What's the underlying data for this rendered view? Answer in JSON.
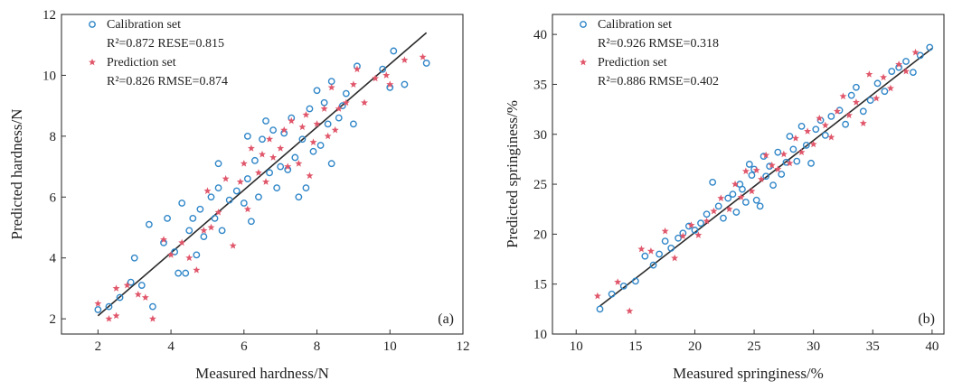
{
  "chart_data": [
    {
      "type": "scatter",
      "xlabel": "Measured hardness/N",
      "ylabel": "Predicted hardness/N",
      "xlim": [
        1,
        12
      ],
      "ylim": [
        1.5,
        12
      ],
      "xticks": [
        2,
        4,
        6,
        8,
        10,
        12
      ],
      "yticks": [
        2,
        4,
        6,
        8,
        10,
        12
      ],
      "panel_label": "(a)",
      "legend_position": "top-left",
      "fit_line": [
        [
          2.0,
          2.1
        ],
        [
          11.0,
          11.4
        ]
      ],
      "series": [
        {
          "name": "Calibration set",
          "stat": "R²=0.872 RESE=0.815",
          "marker": "circle",
          "color": "#2f86c8",
          "points": [
            [
              2.0,
              2.3
            ],
            [
              2.3,
              2.4
            ],
            [
              2.6,
              2.7
            ],
            [
              2.9,
              3.2
            ],
            [
              3.0,
              4.0
            ],
            [
              3.2,
              3.1
            ],
            [
              3.4,
              5.1
            ],
            [
              3.5,
              2.4
            ],
            [
              3.8,
              4.5
            ],
            [
              3.9,
              5.3
            ],
            [
              4.1,
              4.2
            ],
            [
              4.2,
              3.5
            ],
            [
              4.3,
              5.8
            ],
            [
              4.4,
              3.5
            ],
            [
              4.5,
              4.9
            ],
            [
              4.6,
              5.3
            ],
            [
              4.7,
              4.1
            ],
            [
              4.8,
              5.6
            ],
            [
              4.9,
              4.7
            ],
            [
              5.1,
              6.0
            ],
            [
              5.2,
              5.3
            ],
            [
              5.3,
              6.3
            ],
            [
              5.3,
              7.1
            ],
            [
              5.4,
              4.9
            ],
            [
              5.6,
              5.9
            ],
            [
              5.8,
              6.2
            ],
            [
              6.0,
              5.8
            ],
            [
              6.1,
              6.6
            ],
            [
              6.1,
              8.0
            ],
            [
              6.2,
              5.2
            ],
            [
              6.3,
              7.2
            ],
            [
              6.4,
              6.0
            ],
            [
              6.5,
              7.9
            ],
            [
              6.6,
              8.5
            ],
            [
              6.7,
              6.8
            ],
            [
              6.8,
              8.2
            ],
            [
              6.9,
              6.3
            ],
            [
              7.0,
              7.0
            ],
            [
              7.1,
              8.1
            ],
            [
              7.2,
              6.9
            ],
            [
              7.3,
              8.6
            ],
            [
              7.4,
              7.3
            ],
            [
              7.5,
              6.0
            ],
            [
              7.6,
              7.9
            ],
            [
              7.7,
              6.3
            ],
            [
              7.8,
              8.9
            ],
            [
              7.9,
              7.5
            ],
            [
              8.0,
              9.5
            ],
            [
              8.1,
              7.7
            ],
            [
              8.2,
              9.1
            ],
            [
              8.3,
              8.4
            ],
            [
              8.4,
              9.8
            ],
            [
              8.4,
              7.1
            ],
            [
              8.6,
              8.6
            ],
            [
              8.7,
              9.0
            ],
            [
              8.8,
              9.4
            ],
            [
              9.0,
              8.4
            ],
            [
              9.1,
              10.3
            ],
            [
              9.8,
              10.2
            ],
            [
              10.0,
              9.6
            ],
            [
              10.1,
              10.8
            ],
            [
              10.4,
              9.7
            ],
            [
              11.0,
              10.4
            ]
          ]
        },
        {
          "name": "Prediction  set",
          "stat": "R²=0.826 RMSE=0.874",
          "marker": "star",
          "color": "#e0566a",
          "points": [
            [
              2.0,
              2.5
            ],
            [
              2.3,
              2.0
            ],
            [
              2.5,
              3.0
            ],
            [
              2.5,
              2.1
            ],
            [
              2.8,
              3.1
            ],
            [
              3.1,
              2.8
            ],
            [
              3.3,
              2.7
            ],
            [
              3.5,
              2.0
            ],
            [
              3.8,
              4.6
            ],
            [
              4.0,
              4.1
            ],
            [
              4.3,
              4.5
            ],
            [
              4.5,
              4.0
            ],
            [
              4.7,
              3.6
            ],
            [
              4.9,
              4.9
            ],
            [
              5.0,
              6.2
            ],
            [
              5.1,
              5.0
            ],
            [
              5.3,
              5.5
            ],
            [
              5.5,
              6.6
            ],
            [
              5.7,
              4.4
            ],
            [
              5.9,
              6.5
            ],
            [
              6.0,
              7.1
            ],
            [
              6.1,
              5.6
            ],
            [
              6.2,
              7.6
            ],
            [
              6.4,
              6.8
            ],
            [
              6.5,
              7.4
            ],
            [
              6.6,
              6.5
            ],
            [
              6.7,
              7.9
            ],
            [
              6.8,
              7.3
            ],
            [
              7.0,
              7.6
            ],
            [
              7.1,
              8.2
            ],
            [
              7.2,
              7.0
            ],
            [
              7.3,
              8.5
            ],
            [
              7.5,
              7.1
            ],
            [
              7.6,
              8.3
            ],
            [
              7.7,
              8.7
            ],
            [
              7.8,
              6.7
            ],
            [
              7.9,
              7.8
            ],
            [
              8.0,
              8.4
            ],
            [
              8.2,
              8.9
            ],
            [
              8.3,
              8.0
            ],
            [
              8.4,
              9.6
            ],
            [
              8.5,
              8.2
            ],
            [
              8.6,
              8.9
            ],
            [
              8.8,
              9.1
            ],
            [
              9.0,
              9.7
            ],
            [
              9.1,
              10.2
            ],
            [
              9.3,
              9.1
            ],
            [
              9.6,
              9.9
            ],
            [
              9.9,
              10.0
            ],
            [
              10.0,
              9.7
            ],
            [
              10.4,
              10.5
            ],
            [
              10.9,
              10.6
            ]
          ]
        }
      ]
    },
    {
      "type": "scatter",
      "xlabel": "Measured springiness/%",
      "ylabel": "Predicted springiness/%",
      "xlim": [
        8,
        41
      ],
      "ylim": [
        10,
        42
      ],
      "xticks": [
        10,
        15,
        20,
        25,
        30,
        35,
        40
      ],
      "yticks": [
        10,
        15,
        20,
        25,
        30,
        35,
        40
      ],
      "panel_label": "(b)",
      "legend_position": "top-left",
      "fit_line": [
        [
          12.0,
          12.8
        ],
        [
          40.0,
          38.6
        ]
      ],
      "series": [
        {
          "name": "Calibration set",
          "stat": "R²=0.926 RMSE=0.318",
          "marker": "circle",
          "color": "#2f86c8",
          "points": [
            [
              12.0,
              12.5
            ],
            [
              13.0,
              14.0
            ],
            [
              14.0,
              14.8
            ],
            [
              15.0,
              15.3
            ],
            [
              15.8,
              17.8
            ],
            [
              16.5,
              16.9
            ],
            [
              17.0,
              18.0
            ],
            [
              17.5,
              19.3
            ],
            [
              18.0,
              18.6
            ],
            [
              18.6,
              19.6
            ],
            [
              19.0,
              20.1
            ],
            [
              19.5,
              20.8
            ],
            [
              20.0,
              20.4
            ],
            [
              20.5,
              21.1
            ],
            [
              21.0,
              22.0
            ],
            [
              21.5,
              25.2
            ],
            [
              22.0,
              22.8
            ],
            [
              22.4,
              21.6
            ],
            [
              22.8,
              23.6
            ],
            [
              23.2,
              24.0
            ],
            [
              23.5,
              22.2
            ],
            [
              23.8,
              25.0
            ],
            [
              24.0,
              24.5
            ],
            [
              24.3,
              23.2
            ],
            [
              24.6,
              27.0
            ],
            [
              24.8,
              25.9
            ],
            [
              25.0,
              26.5
            ],
            [
              25.2,
              23.4
            ],
            [
              25.5,
              22.8
            ],
            [
              25.8,
              27.8
            ],
            [
              26.0,
              25.8
            ],
            [
              26.3,
              26.8
            ],
            [
              26.6,
              24.9
            ],
            [
              27.0,
              28.2
            ],
            [
              27.3,
              26.0
            ],
            [
              27.7,
              27.2
            ],
            [
              28.0,
              29.8
            ],
            [
              28.3,
              28.5
            ],
            [
              28.6,
              27.3
            ],
            [
              29.0,
              30.8
            ],
            [
              29.4,
              28.9
            ],
            [
              29.8,
              27.1
            ],
            [
              30.2,
              30.5
            ],
            [
              30.6,
              31.4
            ],
            [
              31.0,
              29.9
            ],
            [
              31.5,
              31.8
            ],
            [
              32.2,
              32.4
            ],
            [
              32.7,
              31.0
            ],
            [
              33.2,
              33.9
            ],
            [
              33.6,
              34.7
            ],
            [
              34.2,
              32.3
            ],
            [
              34.8,
              33.4
            ],
            [
              35.4,
              35.1
            ],
            [
              36.0,
              34.3
            ],
            [
              36.6,
              36.3
            ],
            [
              37.2,
              36.7
            ],
            [
              37.8,
              37.3
            ],
            [
              38.4,
              36.2
            ],
            [
              39.0,
              37.9
            ],
            [
              39.8,
              38.7
            ]
          ]
        },
        {
          "name": "Prediction  set",
          "stat": "R²=0.886 RMSE=0.402",
          "marker": "star",
          "color": "#e0566a",
          "points": [
            [
              11.8,
              13.8
            ],
            [
              13.5,
              15.2
            ],
            [
              14.5,
              12.3
            ],
            [
              15.5,
              18.5
            ],
            [
              16.3,
              18.3
            ],
            [
              17.5,
              20.3
            ],
            [
              18.3,
              17.6
            ],
            [
              19.0,
              19.8
            ],
            [
              19.7,
              20.9
            ],
            [
              20.3,
              19.9
            ],
            [
              21.0,
              21.3
            ],
            [
              21.6,
              22.3
            ],
            [
              22.2,
              23.6
            ],
            [
              22.9,
              22.5
            ],
            [
              23.4,
              25.0
            ],
            [
              23.9,
              23.7
            ],
            [
              24.3,
              26.3
            ],
            [
              24.8,
              24.3
            ],
            [
              25.2,
              26.4
            ],
            [
              25.6,
              25.5
            ],
            [
              26.0,
              27.9
            ],
            [
              26.5,
              26.9
            ],
            [
              27.0,
              26.5
            ],
            [
              27.5,
              28.0
            ],
            [
              28.0,
              27.1
            ],
            [
              28.5,
              29.6
            ],
            [
              29.0,
              28.2
            ],
            [
              29.5,
              30.3
            ],
            [
              30.0,
              29.0
            ],
            [
              30.5,
              31.6
            ],
            [
              31.0,
              30.9
            ],
            [
              31.5,
              29.7
            ],
            [
              32.0,
              32.3
            ],
            [
              32.5,
              33.8
            ],
            [
              33.0,
              31.9
            ],
            [
              33.6,
              33.2
            ],
            [
              34.2,
              31.1
            ],
            [
              34.7,
              36.0
            ],
            [
              35.3,
              33.6
            ],
            [
              35.9,
              35.7
            ],
            [
              36.5,
              34.6
            ],
            [
              37.2,
              37.0
            ],
            [
              37.8,
              36.3
            ],
            [
              38.6,
              38.2
            ]
          ]
        }
      ]
    }
  ]
}
